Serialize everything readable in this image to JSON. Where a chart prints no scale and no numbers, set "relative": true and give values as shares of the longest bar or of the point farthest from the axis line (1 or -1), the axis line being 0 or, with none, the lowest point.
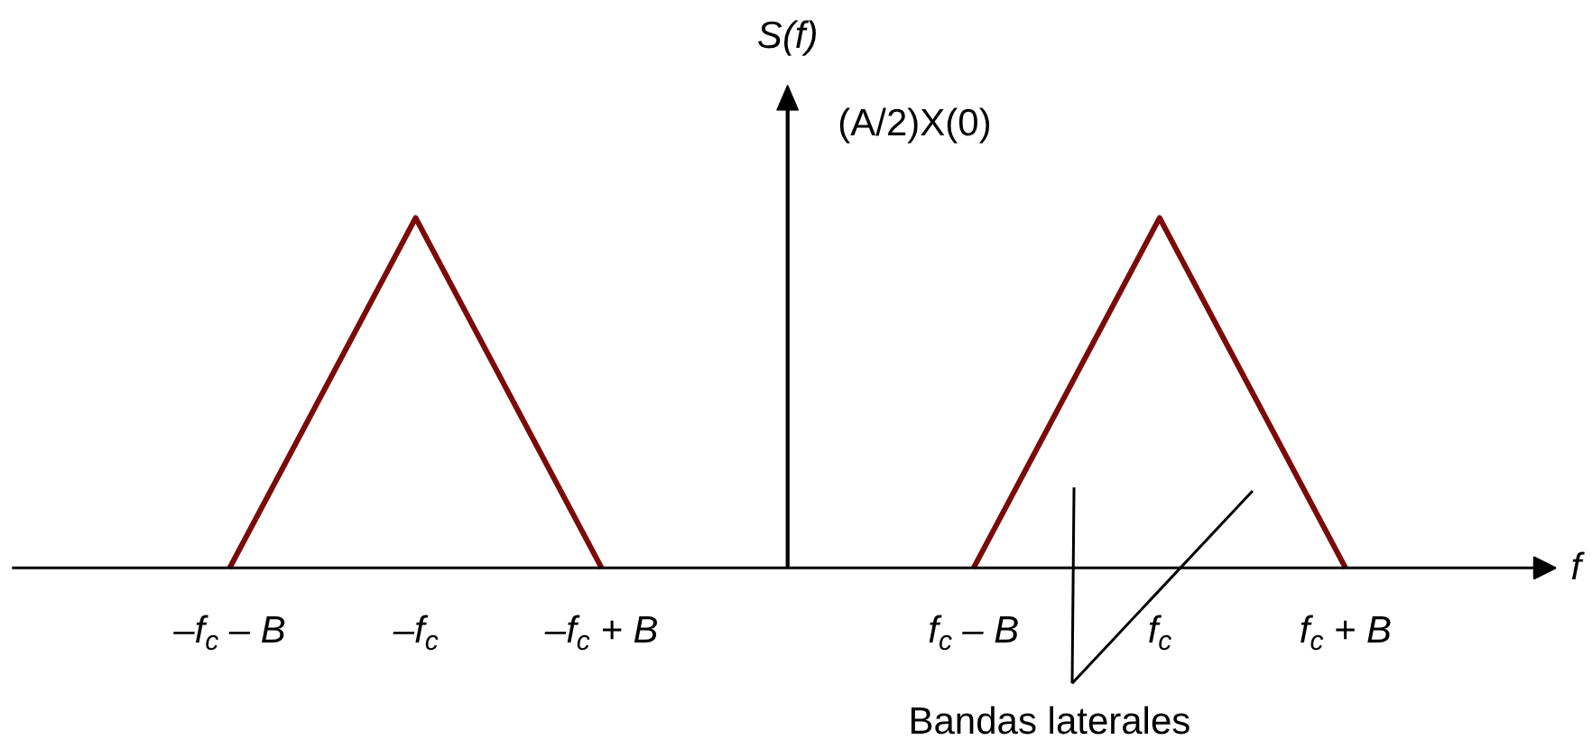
{
  "chart_data": {
    "type": "line",
    "relative": true,
    "ylabel": "S(f)",
    "xlabel": "f",
    "categories": [
      "–f$_{c}$ – B",
      "–f$_{c}$",
      "–f$_{c}$ + B",
      null,
      "f$_{c}$ – B",
      "f$_{c}$",
      "f$_{c}$ + B"
    ],
    "series": [
      {
        "color": "#7b0a0a",
        "values": [
          0,
          1,
          0,
          null,
          0,
          1,
          0
        ]
      }
    ],
    "annotations": [
      "(A/2)X(0)",
      "Bandas laterales"
    ],
    "marker": "none",
    "line_style": "solid"
  }
}
